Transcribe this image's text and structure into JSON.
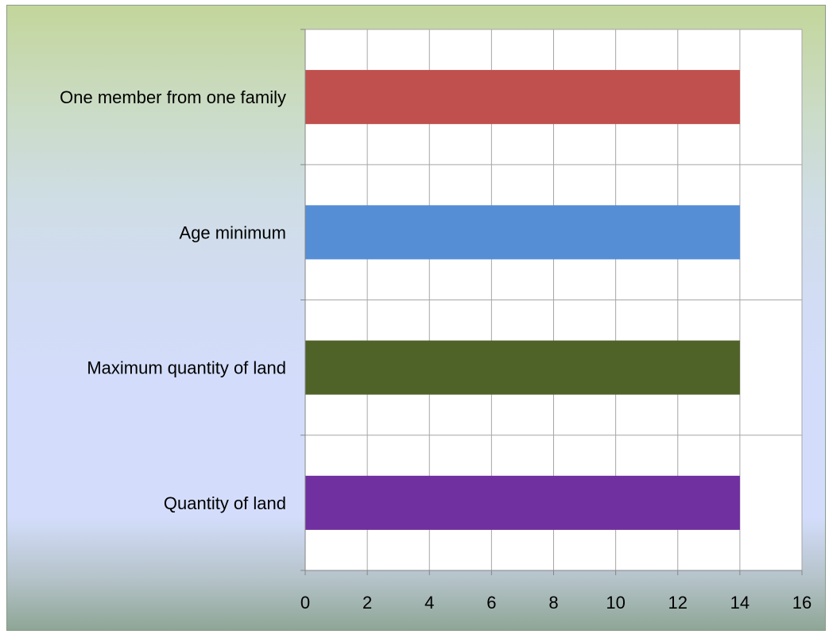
{
  "chart_data": {
    "type": "bar",
    "orientation": "horizontal",
    "categories": [
      "One member from one family",
      "Age minimum",
      "Maximum quantity of land",
      "Quantity of land"
    ],
    "values": [
      14,
      14,
      14,
      14
    ],
    "bar_colors": [
      "#c0504d",
      "#558ed5",
      "#4f6228",
      "#7030a0"
    ],
    "xlim": [
      0,
      16
    ],
    "x_ticks": [
      "0",
      "2",
      "4",
      "6",
      "8",
      "10",
      "12",
      "14",
      "16"
    ],
    "grid": true,
    "legend": "none",
    "title": "",
    "xlabel": "",
    "ylabel": ""
  }
}
